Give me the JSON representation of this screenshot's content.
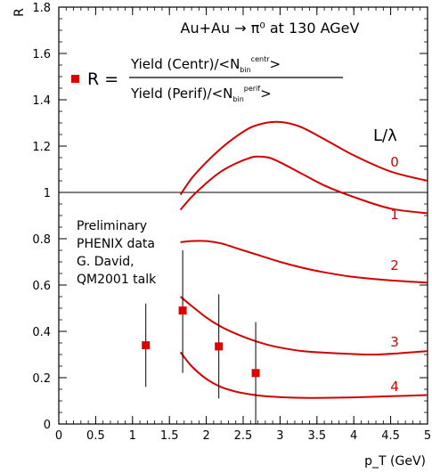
{
  "chart_data": {
    "type": "scatter",
    "title": "Au+Au → π⁰ at 130 AGeV",
    "xlabel": "p_T (GeV)",
    "ylabel": "R",
    "xlim": [
      0,
      5
    ],
    "ylim": [
      0,
      1.8
    ],
    "x_ticks": [
      "0",
      "0.5",
      "1",
      "1.5",
      "2",
      "2.5",
      "3",
      "3.5",
      "4",
      "4.5",
      "5"
    ],
    "y_ticks": [
      "0",
      "0.2",
      "0.4",
      "0.6",
      "0.8",
      "1",
      "1.2",
      "1.4",
      "1.6",
      "1.8"
    ],
    "reference_line": 1.0,
    "legend": {
      "marker_label": "R =",
      "numerator": "Yield (Centr)/<N_bin^centr>",
      "numerator_main": "Yield (Centr)/<N",
      "numerator_sub": "bin",
      "numerator_sup": "centr",
      "denominator": "Yield (Perif)/<N_bin^perif>",
      "denominator_main": "Yield (Perif)/<N",
      "denominator_sub": "bin",
      "denominator_sup": "perif",
      "closing": ">"
    },
    "annotation_lines": [
      "Preliminary",
      "PHENIX data",
      "G. David,",
      "QM2001 talk"
    ],
    "curve_header": "L/λ",
    "points": [
      {
        "x": 1.18,
        "y": 0.34,
        "ylow": 0.16,
        "yhigh": 0.52
      },
      {
        "x": 1.68,
        "y": 0.49,
        "ylow": 0.22,
        "yhigh": 0.75
      },
      {
        "x": 2.17,
        "y": 0.335,
        "ylow": 0.11,
        "yhigh": 0.56
      },
      {
        "x": 2.67,
        "y": 0.22,
        "ylow": 0.0,
        "yhigh": 0.44
      }
    ],
    "curves": [
      {
        "label": "0",
        "x": [
          1.65,
          1.8,
          2.0,
          2.2,
          2.4,
          2.6,
          2.8,
          2.95,
          3.1,
          3.3,
          3.6,
          4.0,
          4.5,
          5.0
        ],
        "y": [
          0.99,
          1.06,
          1.13,
          1.19,
          1.24,
          1.28,
          1.3,
          1.305,
          1.3,
          1.28,
          1.23,
          1.16,
          1.09,
          1.05
        ]
      },
      {
        "label": "1",
        "x": [
          1.65,
          1.8,
          2.0,
          2.2,
          2.4,
          2.6,
          2.7,
          2.85,
          3.0,
          3.3,
          3.6,
          4.0,
          4.5,
          5.0
        ],
        "y": [
          0.925,
          0.98,
          1.04,
          1.09,
          1.125,
          1.15,
          1.155,
          1.15,
          1.13,
          1.08,
          1.03,
          0.98,
          0.93,
          0.91
        ]
      },
      {
        "label": "2",
        "x": [
          1.65,
          1.8,
          2.0,
          2.2,
          2.4,
          2.7,
          3.0,
          3.3,
          3.6,
          4.0,
          4.5,
          5.0
        ],
        "y": [
          0.785,
          0.79,
          0.79,
          0.78,
          0.76,
          0.73,
          0.7,
          0.675,
          0.655,
          0.635,
          0.62,
          0.61
        ]
      },
      {
        "label": "3",
        "x": [
          1.65,
          1.8,
          2.0,
          2.2,
          2.4,
          2.6,
          2.8,
          3.0,
          3.3,
          3.6,
          4.0,
          4.3,
          4.6,
          5.0
        ],
        "y": [
          0.55,
          0.51,
          0.46,
          0.42,
          0.39,
          0.365,
          0.345,
          0.33,
          0.315,
          0.308,
          0.302,
          0.3,
          0.305,
          0.315
        ]
      },
      {
        "label": "4",
        "x": [
          1.65,
          1.8,
          2.0,
          2.2,
          2.4,
          2.6,
          2.8,
          3.0,
          3.3,
          3.6,
          4.0,
          4.5,
          5.0
        ],
        "y": [
          0.31,
          0.25,
          0.195,
          0.16,
          0.14,
          0.128,
          0.12,
          0.116,
          0.113,
          0.113,
          0.115,
          0.12,
          0.125
        ]
      }
    ],
    "colors": {
      "data": "#e00000",
      "curves": "#d40000",
      "axes": "#000000"
    }
  }
}
